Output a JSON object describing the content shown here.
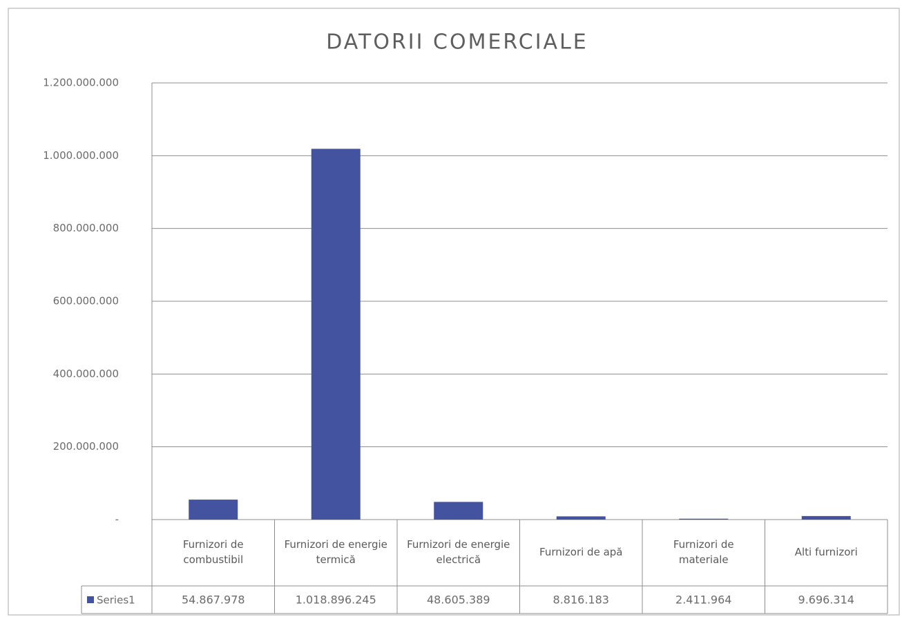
{
  "chart_data": {
    "type": "bar",
    "title": "DATORII COMERCIALE",
    "categories": [
      "Furnizori de combustibil",
      "Furnizori de energie termică",
      "Furnizori de energie electrică",
      "Furnizori de apă",
      "Furnizori de materiale",
      "Alti furnizori"
    ],
    "series": [
      {
        "name": "Series1",
        "color": "#4353a0",
        "values": [
          54867978,
          1018896245,
          48605389,
          8816183,
          2411964,
          9696314
        ],
        "value_labels": [
          "54.867.978",
          "1.018.896.245",
          "48.605.389",
          "8.816.183",
          "2.411.964",
          "9.696.314"
        ]
      }
    ],
    "ylim": [
      0,
      1200000000
    ],
    "yticks": [
      {
        "value": 0,
        "label": "-"
      },
      {
        "value": 200000000,
        "label": "200.000.000"
      },
      {
        "value": 400000000,
        "label": "400.000.000"
      },
      {
        "value": 600000000,
        "label": "600.000.000"
      },
      {
        "value": 800000000,
        "label": "800.000.000"
      },
      {
        "value": 1000000000,
        "label": "1.000.000.000"
      },
      {
        "value": 1200000000,
        "label": "1.200.000.000"
      }
    ],
    "grid": true
  }
}
